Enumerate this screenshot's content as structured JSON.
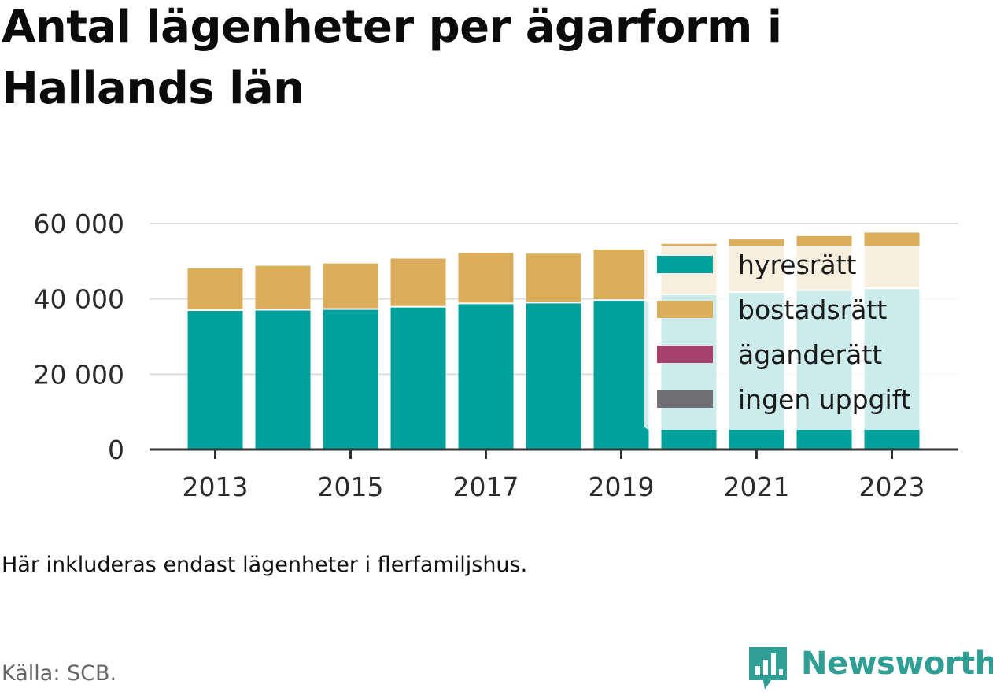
{
  "header": {
    "title": "Antal lägenheter per ägarform i Hallands län"
  },
  "footer": {
    "note": "Här inkluderas endast lägenheter i flerfamiljshus.",
    "source": "Källa: SCB.",
    "brand": "Newsworthy",
    "brand_icon": "bar-chart-speech-bubble-icon",
    "brand_color": "#2f9e95"
  },
  "chart_data": {
    "type": "bar",
    "stacked": true,
    "title": "Antal lägenheter per ägarform i Hallands län",
    "xlabel": "",
    "ylabel": "",
    "categories": [
      "2013",
      "2014",
      "2015",
      "2016",
      "2017",
      "2018",
      "2019",
      "2020",
      "2021",
      "2022",
      "2023"
    ],
    "x_tick_labels": [
      "2013",
      "2015",
      "2017",
      "2019",
      "2021",
      "2023"
    ],
    "y_ticks": [
      0,
      20000,
      40000,
      60000
    ],
    "y_tick_labels": [
      "0",
      "20 000",
      "40 000",
      "60 000"
    ],
    "ylim": [
      0,
      60000
    ],
    "grid": true,
    "legend_position": "top-right, overlapping the bars",
    "series": [
      {
        "name": "hyresrätt",
        "color": "#00a19a",
        "values": [
          36800,
          36900,
          37100,
          37700,
          38600,
          38800,
          39500,
          41000,
          41600,
          42100,
          42600
        ]
      },
      {
        "name": "bostadsrätt",
        "color": "#dbae5b",
        "values": [
          11300,
          11900,
          12300,
          13000,
          13600,
          13200,
          13600,
          13600,
          14200,
          14600,
          15000
        ]
      },
      {
        "name": "äganderätt",
        "color": "#a8426b",
        "values": [
          0,
          0,
          0,
          0,
          0,
          0,
          0,
          0,
          0,
          0,
          0
        ]
      },
      {
        "name": "ingen uppgift",
        "color": "#6f6f73",
        "values": [
          0,
          0,
          0,
          0,
          0,
          0,
          0,
          0,
          0,
          0,
          0
        ]
      }
    ]
  }
}
